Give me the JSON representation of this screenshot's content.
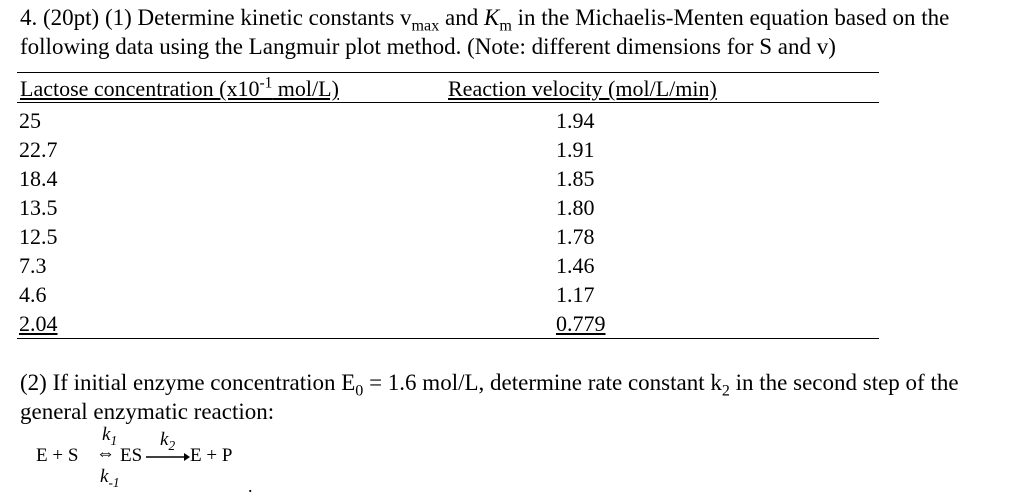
{
  "question1": {
    "lead": "4. (20pt) (1) Determine kinetic constants v",
    "vmax_sub": "max",
    "mid": " and ",
    "km_symbol": "K",
    "km_sub": "m",
    "tail": " in the Michaelis-Menten equation based on the following data using the Langmuir plot method. (Note: different dimensions for S and v)"
  },
  "table": {
    "header_conc_pre": "Lactose concentration (x10",
    "header_conc_exp": "-1",
    "header_conc_post": " mol/L)",
    "header_velocity": "Reaction velocity (mol/L/min)",
    "rows": [
      {
        "conc": "25",
        "vel": "1.94"
      },
      {
        "conc": "22.7",
        "vel": "1.91"
      },
      {
        "conc": "18.4",
        "vel": "1.85"
      },
      {
        "conc": "13.5",
        "vel": "1.80"
      },
      {
        "conc": "12.5",
        "vel": "1.78"
      },
      {
        "conc": "7.3",
        "vel": "1.46"
      },
      {
        "conc": "4.6",
        "vel": "1.17"
      },
      {
        "conc": "2.04",
        "vel": "0.779"
      }
    ]
  },
  "question2": {
    "lead": "(2) If initial enzyme concentration E",
    "e0_sub": "0",
    "mid": " = 1.6 mol/L, determine rate constant k",
    "k2_sub": "2",
    "tail": " in the second step of the general enzymatic reaction:"
  },
  "equation": {
    "left": "E + S",
    "double_arrow": "⇔",
    "es": "ES",
    "right": "E + P",
    "k1": "k",
    "k1_sub": "1",
    "kminus1": "k",
    "kminus1_sub": "-1",
    "k2": "k",
    "k2_sub": "2",
    "trailing_dot": "."
  }
}
